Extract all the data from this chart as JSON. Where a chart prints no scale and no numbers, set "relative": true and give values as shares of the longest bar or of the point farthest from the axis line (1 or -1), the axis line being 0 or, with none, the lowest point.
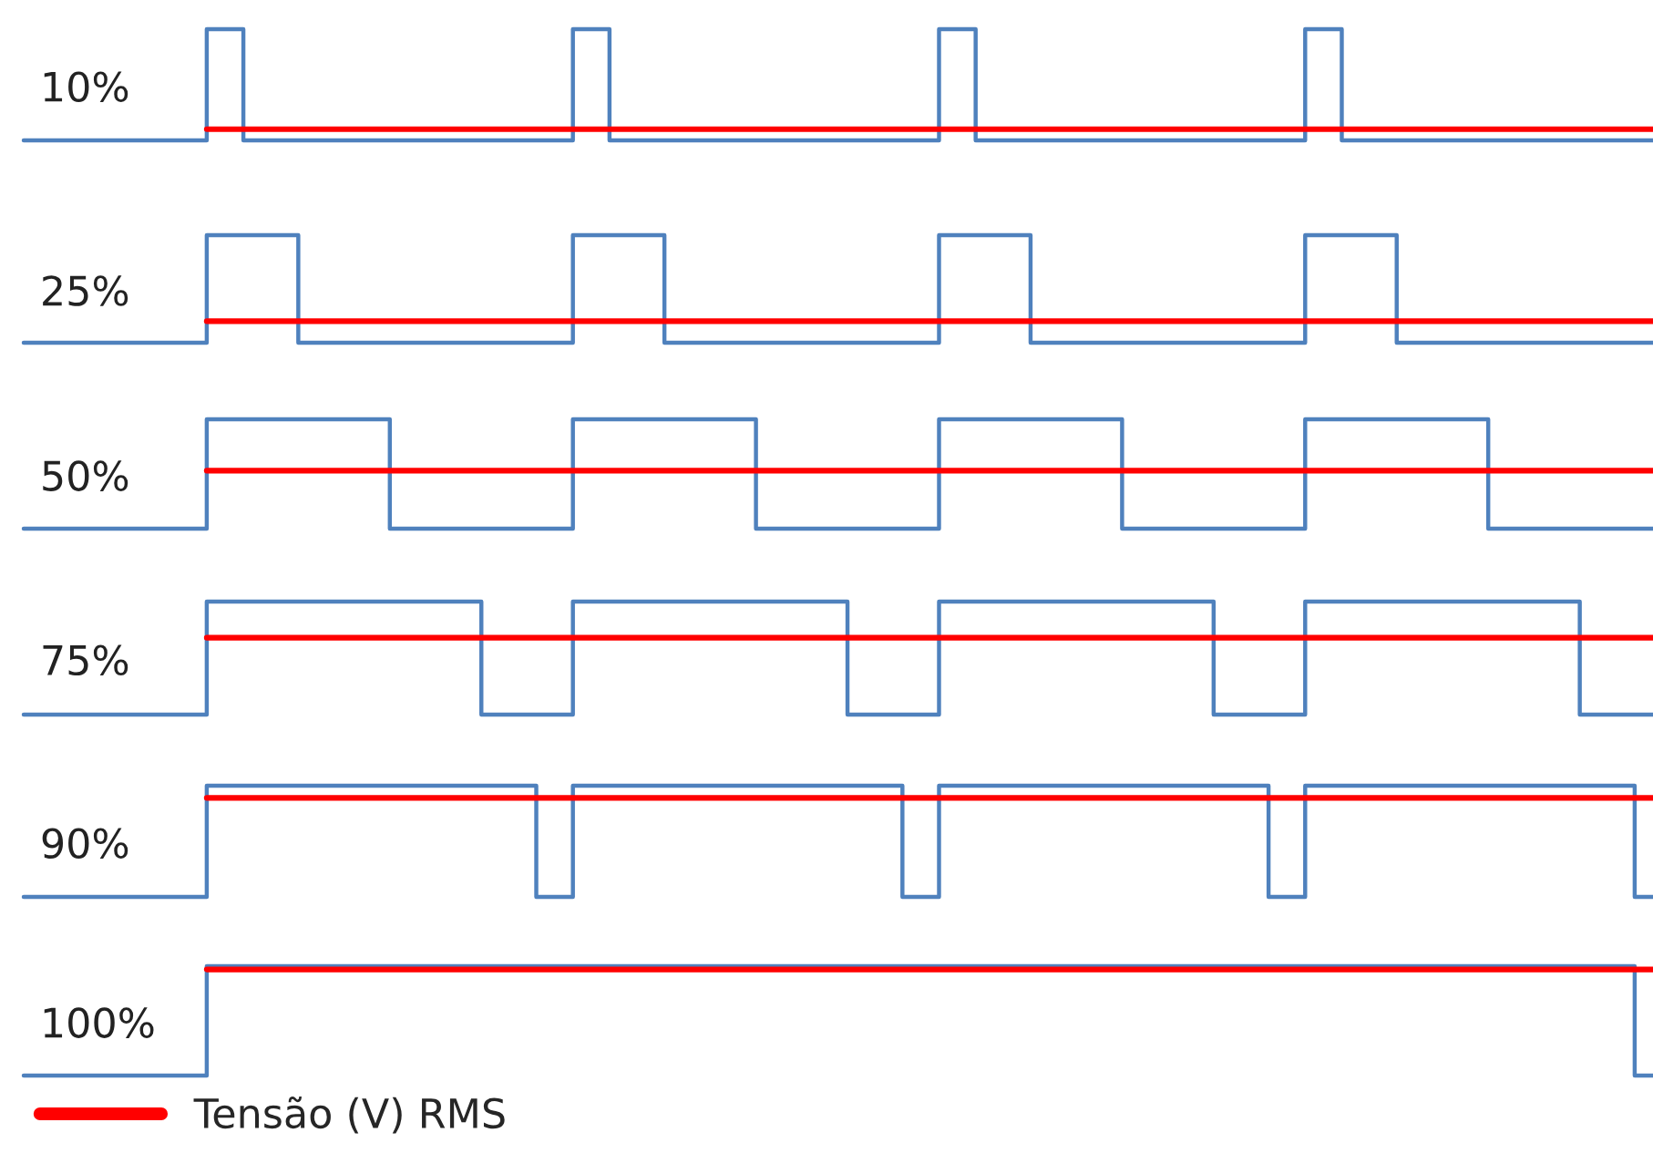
{
  "chart_data": [
    {
      "type": "step",
      "ylabel": "10%",
      "relative": true,
      "legend": false,
      "categories": [
        null,
        null,
        null,
        null,
        null,
        null,
        null,
        null,
        null,
        null,
        null,
        null,
        null,
        null,
        null,
        null,
        null,
        null,
        null,
        null,
        null,
        null,
        null,
        null,
        null,
        null,
        null,
        null,
        null,
        null,
        null,
        null,
        null,
        null,
        null,
        null,
        null,
        null,
        null,
        null,
        null,
        null,
        null,
        null,
        null,
        null,
        null,
        null,
        null,
        null,
        null,
        null,
        null,
        null,
        null,
        null,
        null,
        null,
        null,
        null,
        null,
        null,
        null,
        null,
        null,
        null,
        null,
        null,
        null,
        null,
        null,
        null,
        null,
        null,
        null,
        null,
        null,
        null,
        null,
        null,
        null,
        null,
        null,
        null,
        null,
        null,
        null,
        null,
        null,
        null
      ],
      "series": [
        {
          "color": "#4f81bd",
          "values": [
            0,
            0,
            0,
            0,
            0,
            0,
            0,
            0,
            0,
            0,
            1,
            1,
            0,
            0,
            0,
            0,
            0,
            0,
            0,
            0,
            0,
            0,
            0,
            0,
            0,
            0,
            0,
            0,
            0,
            0,
            1,
            1,
            0,
            0,
            0,
            0,
            0,
            0,
            0,
            0,
            0,
            0,
            0,
            0,
            0,
            0,
            0,
            0,
            0,
            0,
            1,
            1,
            0,
            0,
            0,
            0,
            0,
            0,
            0,
            0,
            0,
            0,
            0,
            0,
            0,
            0,
            0,
            0,
            0,
            0,
            1,
            1,
            0,
            0,
            0,
            0,
            0,
            0,
            0,
            0,
            0,
            0,
            0,
            0,
            0,
            0,
            0,
            0,
            0,
            0
          ]
        },
        {
          "type": "line",
          "color": "#ff0000",
          "values": [
            null,
            null,
            null,
            null,
            null,
            null,
            null,
            null,
            null,
            null,
            0.1,
            0.1,
            0.1,
            0.1,
            0.1,
            0.1,
            0.1,
            0.1,
            0.1,
            0.1,
            0.1,
            0.1,
            0.1,
            0.1,
            0.1,
            0.1,
            0.1,
            0.1,
            0.1,
            0.1,
            0.1,
            0.1,
            0.1,
            0.1,
            0.1,
            0.1,
            0.1,
            0.1,
            0.1,
            0.1,
            0.1,
            0.1,
            0.1,
            0.1,
            0.1,
            0.1,
            0.1,
            0.1,
            0.1,
            0.1,
            0.1,
            0.1,
            0.1,
            0.1,
            0.1,
            0.1,
            0.1,
            0.1,
            0.1,
            0.1,
            0.1,
            0.1,
            0.1,
            0.1,
            0.1,
            0.1,
            0.1,
            0.1,
            0.1,
            0.1,
            0.1,
            0.1,
            0.1,
            0.1,
            0.1,
            0.1,
            0.1,
            0.1,
            0.1,
            0.1,
            0.1,
            0.1,
            0.1,
            0.1,
            0.1,
            0.1,
            0.1,
            0.1,
            0.1,
            0.1
          ]
        }
      ]
    },
    {
      "type": "step",
      "ylabel": "25%",
      "relative": true,
      "legend": false,
      "categories": [
        null,
        null,
        null,
        null,
        null,
        null,
        null,
        null,
        null,
        null,
        null,
        null,
        null,
        null,
        null,
        null,
        null,
        null,
        null,
        null,
        null,
        null,
        null,
        null,
        null,
        null,
        null,
        null,
        null,
        null,
        null,
        null,
        null,
        null,
        null,
        null,
        null,
        null,
        null,
        null,
        null,
        null,
        null,
        null,
        null,
        null,
        null,
        null,
        null,
        null,
        null,
        null,
        null,
        null,
        null,
        null,
        null,
        null,
        null,
        null,
        null,
        null,
        null,
        null,
        null,
        null,
        null,
        null,
        null,
        null,
        null,
        null,
        null,
        null,
        null,
        null,
        null,
        null,
        null,
        null,
        null,
        null,
        null,
        null,
        null,
        null,
        null,
        null,
        null,
        null
      ],
      "series": [
        {
          "color": "#4f81bd",
          "values": [
            0,
            0,
            0,
            0,
            0,
            0,
            0,
            0,
            0,
            0,
            1,
            1,
            1,
            1,
            1,
            0,
            0,
            0,
            0,
            0,
            0,
            0,
            0,
            0,
            0,
            0,
            0,
            0,
            0,
            0,
            1,
            1,
            1,
            1,
            1,
            0,
            0,
            0,
            0,
            0,
            0,
            0,
            0,
            0,
            0,
            0,
            0,
            0,
            0,
            0,
            1,
            1,
            1,
            1,
            1,
            0,
            0,
            0,
            0,
            0,
            0,
            0,
            0,
            0,
            0,
            0,
            0,
            0,
            0,
            0,
            1,
            1,
            1,
            1,
            1,
            0,
            0,
            0,
            0,
            0,
            0,
            0,
            0,
            0,
            0,
            0,
            0,
            0,
            0,
            0
          ]
        },
        {
          "type": "line",
          "color": "#ff0000",
          "values": [
            null,
            null,
            null,
            null,
            null,
            null,
            null,
            null,
            null,
            null,
            0.2,
            0.2,
            0.2,
            0.2,
            0.2,
            0.2,
            0.2,
            0.2,
            0.2,
            0.2,
            0.2,
            0.2,
            0.2,
            0.2,
            0.2,
            0.2,
            0.2,
            0.2,
            0.2,
            0.2,
            0.2,
            0.2,
            0.2,
            0.2,
            0.2,
            0.2,
            0.2,
            0.2,
            0.2,
            0.2,
            0.2,
            0.2,
            0.2,
            0.2,
            0.2,
            0.2,
            0.2,
            0.2,
            0.2,
            0.2,
            0.2,
            0.2,
            0.2,
            0.2,
            0.2,
            0.2,
            0.2,
            0.2,
            0.2,
            0.2,
            0.2,
            0.2,
            0.2,
            0.2,
            0.2,
            0.2,
            0.2,
            0.2,
            0.2,
            0.2,
            0.2,
            0.2,
            0.2,
            0.2,
            0.2,
            0.2,
            0.2,
            0.2,
            0.2,
            0.2,
            0.2,
            0.2,
            0.2,
            0.2,
            0.2,
            0.2,
            0.2,
            0.2,
            0.2,
            0.2
          ]
        }
      ]
    },
    {
      "type": "step",
      "ylabel": "50%",
      "relative": true,
      "legend": false,
      "categories": [
        null,
        null,
        null,
        null,
        null,
        null,
        null,
        null,
        null,
        null,
        null,
        null,
        null,
        null,
        null,
        null,
        null,
        null,
        null,
        null,
        null,
        null,
        null,
        null,
        null,
        null,
        null,
        null,
        null,
        null,
        null,
        null,
        null,
        null,
        null,
        null,
        null,
        null,
        null,
        null,
        null,
        null,
        null,
        null,
        null,
        null,
        null,
        null,
        null,
        null,
        null,
        null,
        null,
        null,
        null,
        null,
        null,
        null,
        null,
        null,
        null,
        null,
        null,
        null,
        null,
        null,
        null,
        null,
        null,
        null,
        null,
        null,
        null,
        null,
        null,
        null,
        null,
        null,
        null,
        null,
        null,
        null,
        null,
        null,
        null,
        null,
        null,
        null,
        null,
        null
      ],
      "series": [
        {
          "color": "#4f81bd",
          "values": [
            0,
            0,
            0,
            0,
            0,
            0,
            0,
            0,
            0,
            0,
            1,
            1,
            1,
            1,
            1,
            1,
            1,
            1,
            1,
            1,
            0,
            0,
            0,
            0,
            0,
            0,
            0,
            0,
            0,
            0,
            1,
            1,
            1,
            1,
            1,
            1,
            1,
            1,
            1,
            1,
            0,
            0,
            0,
            0,
            0,
            0,
            0,
            0,
            0,
            0,
            1,
            1,
            1,
            1,
            1,
            1,
            1,
            1,
            1,
            1,
            0,
            0,
            0,
            0,
            0,
            0,
            0,
            0,
            0,
            0,
            1,
            1,
            1,
            1,
            1,
            1,
            1,
            1,
            1,
            1,
            0,
            0,
            0,
            0,
            0,
            0,
            0,
            0,
            0,
            0
          ]
        },
        {
          "type": "line",
          "color": "#ff0000",
          "values": [
            null,
            null,
            null,
            null,
            null,
            null,
            null,
            null,
            null,
            null,
            0.53,
            0.53,
            0.53,
            0.53,
            0.53,
            0.53,
            0.53,
            0.53,
            0.53,
            0.53,
            0.53,
            0.53,
            0.53,
            0.53,
            0.53,
            0.53,
            0.53,
            0.53,
            0.53,
            0.53,
            0.53,
            0.53,
            0.53,
            0.53,
            0.53,
            0.53,
            0.53,
            0.53,
            0.53,
            0.53,
            0.53,
            0.53,
            0.53,
            0.53,
            0.53,
            0.53,
            0.53,
            0.53,
            0.53,
            0.53,
            0.53,
            0.53,
            0.53,
            0.53,
            0.53,
            0.53,
            0.53,
            0.53,
            0.53,
            0.53,
            0.53,
            0.53,
            0.53,
            0.53,
            0.53,
            0.53,
            0.53,
            0.53,
            0.53,
            0.53,
            0.53,
            0.53,
            0.53,
            0.53,
            0.53,
            0.53,
            0.53,
            0.53,
            0.53,
            0.53,
            0.53,
            0.53,
            0.53,
            0.53,
            0.53,
            0.53,
            0.53,
            0.53,
            0.53,
            0.53
          ]
        }
      ]
    },
    {
      "type": "step",
      "ylabel": "75%",
      "relative": true,
      "legend": false,
      "categories": [
        null,
        null,
        null,
        null,
        null,
        null,
        null,
        null,
        null,
        null,
        null,
        null,
        null,
        null,
        null,
        null,
        null,
        null,
        null,
        null,
        null,
        null,
        null,
        null,
        null,
        null,
        null,
        null,
        null,
        null,
        null,
        null,
        null,
        null,
        null,
        null,
        null,
        null,
        null,
        null,
        null,
        null,
        null,
        null,
        null,
        null,
        null,
        null,
        null,
        null,
        null,
        null,
        null,
        null,
        null,
        null,
        null,
        null,
        null,
        null,
        null,
        null,
        null,
        null,
        null,
        null,
        null,
        null,
        null,
        null,
        null,
        null,
        null,
        null,
        null,
        null,
        null,
        null,
        null,
        null,
        null,
        null,
        null,
        null,
        null,
        null,
        null,
        null,
        null,
        null
      ],
      "series": [
        {
          "color": "#4f81bd",
          "values": [
            0,
            0,
            0,
            0,
            0,
            0,
            0,
            0,
            0,
            0,
            1,
            1,
            1,
            1,
            1,
            1,
            1,
            1,
            1,
            1,
            1,
            1,
            1,
            1,
            1,
            0,
            0,
            0,
            0,
            0,
            1,
            1,
            1,
            1,
            1,
            1,
            1,
            1,
            1,
            1,
            1,
            1,
            1,
            1,
            1,
            0,
            0,
            0,
            0,
            0,
            1,
            1,
            1,
            1,
            1,
            1,
            1,
            1,
            1,
            1,
            1,
            1,
            1,
            1,
            1,
            0,
            0,
            0,
            0,
            0,
            1,
            1,
            1,
            1,
            1,
            1,
            1,
            1,
            1,
            1,
            1,
            1,
            1,
            1,
            1,
            0,
            0,
            0,
            0,
            0
          ]
        },
        {
          "type": "line",
          "color": "#ff0000",
          "values": [
            null,
            null,
            null,
            null,
            null,
            null,
            null,
            null,
            null,
            null,
            0.68,
            0.68,
            0.68,
            0.68,
            0.68,
            0.68,
            0.68,
            0.68,
            0.68,
            0.68,
            0.68,
            0.68,
            0.68,
            0.68,
            0.68,
            0.68,
            0.68,
            0.68,
            0.68,
            0.68,
            0.68,
            0.68,
            0.68,
            0.68,
            0.68,
            0.68,
            0.68,
            0.68,
            0.68,
            0.68,
            0.68,
            0.68,
            0.68,
            0.68,
            0.68,
            0.68,
            0.68,
            0.68,
            0.68,
            0.68,
            0.68,
            0.68,
            0.68,
            0.68,
            0.68,
            0.68,
            0.68,
            0.68,
            0.68,
            0.68,
            0.68,
            0.68,
            0.68,
            0.68,
            0.68,
            0.68,
            0.68,
            0.68,
            0.68,
            0.68,
            0.68,
            0.68,
            0.68,
            0.68,
            0.68,
            0.68,
            0.68,
            0.68,
            0.68,
            0.68,
            0.68,
            0.68,
            0.68,
            0.68,
            0.68,
            0.68,
            0.68,
            0.68,
            0.68,
            0.68
          ]
        }
      ]
    },
    {
      "type": "step",
      "ylabel": "90%",
      "relative": true,
      "legend": false,
      "categories": [
        null,
        null,
        null,
        null,
        null,
        null,
        null,
        null,
        null,
        null,
        null,
        null,
        null,
        null,
        null,
        null,
        null,
        null,
        null,
        null,
        null,
        null,
        null,
        null,
        null,
        null,
        null,
        null,
        null,
        null,
        null,
        null,
        null,
        null,
        null,
        null,
        null,
        null,
        null,
        null,
        null,
        null,
        null,
        null,
        null,
        null,
        null,
        null,
        null,
        null,
        null,
        null,
        null,
        null,
        null,
        null,
        null,
        null,
        null,
        null,
        null,
        null,
        null,
        null,
        null,
        null,
        null,
        null,
        null,
        null,
        null,
        null,
        null,
        null,
        null,
        null,
        null,
        null,
        null,
        null,
        null,
        null,
        null,
        null,
        null,
        null,
        null,
        null,
        null,
        null
      ],
      "series": [
        {
          "color": "#4f81bd",
          "values": [
            0,
            0,
            0,
            0,
            0,
            0,
            0,
            0,
            0,
            0,
            1,
            1,
            1,
            1,
            1,
            1,
            1,
            1,
            1,
            1,
            1,
            1,
            1,
            1,
            1,
            1,
            1,
            1,
            0,
            0,
            1,
            1,
            1,
            1,
            1,
            1,
            1,
            1,
            1,
            1,
            1,
            1,
            1,
            1,
            1,
            1,
            1,
            1,
            0,
            0,
            1,
            1,
            1,
            1,
            1,
            1,
            1,
            1,
            1,
            1,
            1,
            1,
            1,
            1,
            1,
            1,
            1,
            1,
            0,
            0,
            1,
            1,
            1,
            1,
            1,
            1,
            1,
            1,
            1,
            1,
            1,
            1,
            1,
            1,
            1,
            1,
            1,
            1,
            0,
            0
          ]
        },
        {
          "type": "line",
          "color": "#ff0000",
          "values": [
            null,
            null,
            null,
            null,
            null,
            null,
            null,
            null,
            null,
            null,
            0.89,
            0.89,
            0.89,
            0.89,
            0.89,
            0.89,
            0.89,
            0.89,
            0.89,
            0.89,
            0.89,
            0.89,
            0.89,
            0.89,
            0.89,
            0.89,
            0.89,
            0.89,
            0.89,
            0.89,
            0.89,
            0.89,
            0.89,
            0.89,
            0.89,
            0.89,
            0.89,
            0.89,
            0.89,
            0.89,
            0.89,
            0.89,
            0.89,
            0.89,
            0.89,
            0.89,
            0.89,
            0.89,
            0.89,
            0.89,
            0.89,
            0.89,
            0.89,
            0.89,
            0.89,
            0.89,
            0.89,
            0.89,
            0.89,
            0.89,
            0.89,
            0.89,
            0.89,
            0.89,
            0.89,
            0.89,
            0.89,
            0.89,
            0.89,
            0.89,
            0.89,
            0.89,
            0.89,
            0.89,
            0.89,
            0.89,
            0.89,
            0.89,
            0.89,
            0.89,
            0.89,
            0.89,
            0.89,
            0.89,
            0.89,
            0.89,
            0.89,
            0.89,
            0.89,
            0.89
          ]
        }
      ]
    },
    {
      "type": "step",
      "ylabel": "100%",
      "relative": true,
      "legend": "bottom left",
      "categories": [
        null,
        null,
        null,
        null,
        null,
        null,
        null,
        null,
        null,
        null,
        null,
        null,
        null,
        null,
        null,
        null,
        null,
        null,
        null,
        null,
        null,
        null,
        null,
        null,
        null,
        null,
        null,
        null,
        null,
        null,
        null,
        null,
        null,
        null,
        null,
        null,
        null,
        null,
        null,
        null,
        null,
        null,
        null,
        null,
        null,
        null,
        null,
        null,
        null,
        null,
        null,
        null,
        null,
        null,
        null,
        null,
        null,
        null,
        null,
        null,
        null,
        null,
        null,
        null,
        null,
        null,
        null,
        null,
        null,
        null,
        null,
        null,
        null,
        null,
        null,
        null,
        null,
        null,
        null,
        null,
        null,
        null,
        null,
        null,
        null,
        null,
        null,
        null,
        null,
        null
      ],
      "series": [
        {
          "color": "#4f81bd",
          "values": [
            0,
            0,
            0,
            0,
            0,
            0,
            0,
            0,
            0,
            0,
            1,
            1,
            1,
            1,
            1,
            1,
            1,
            1,
            1,
            1,
            1,
            1,
            1,
            1,
            1,
            1,
            1,
            1,
            1,
            1,
            1,
            1,
            1,
            1,
            1,
            1,
            1,
            1,
            1,
            1,
            1,
            1,
            1,
            1,
            1,
            1,
            1,
            1,
            1,
            1,
            1,
            1,
            1,
            1,
            1,
            1,
            1,
            1,
            1,
            1,
            1,
            1,
            1,
            1,
            1,
            1,
            1,
            1,
            1,
            1,
            1,
            1,
            1,
            1,
            1,
            1,
            1,
            1,
            1,
            1,
            1,
            1,
            1,
            1,
            1,
            1,
            1,
            1,
            0,
            0
          ]
        },
        {
          "type": "line",
          "name": "Tensão (V) RMS",
          "color": "#ff0000",
          "values": [
            null,
            null,
            null,
            null,
            null,
            null,
            null,
            null,
            null,
            null,
            0.97,
            0.97,
            0.97,
            0.97,
            0.97,
            0.97,
            0.97,
            0.97,
            0.97,
            0.97,
            0.97,
            0.97,
            0.97,
            0.97,
            0.97,
            0.97,
            0.97,
            0.97,
            0.97,
            0.97,
            0.97,
            0.97,
            0.97,
            0.97,
            0.97,
            0.97,
            0.97,
            0.97,
            0.97,
            0.97,
            0.97,
            0.97,
            0.97,
            0.97,
            0.97,
            0.97,
            0.97,
            0.97,
            0.97,
            0.97,
            0.97,
            0.97,
            0.97,
            0.97,
            0.97,
            0.97,
            0.97,
            0.97,
            0.97,
            0.97,
            0.97,
            0.97,
            0.97,
            0.97,
            0.97,
            0.97,
            0.97,
            0.97,
            0.97,
            0.97,
            0.97,
            0.97,
            0.97,
            0.97,
            0.97,
            0.97,
            0.97,
            0.97,
            0.97,
            0.97,
            0.97,
            0.97,
            0.97,
            0.97,
            0.97,
            0.97,
            0.97,
            0.97,
            0.97,
            0.97
          ]
        }
      ]
    }
  ]
}
